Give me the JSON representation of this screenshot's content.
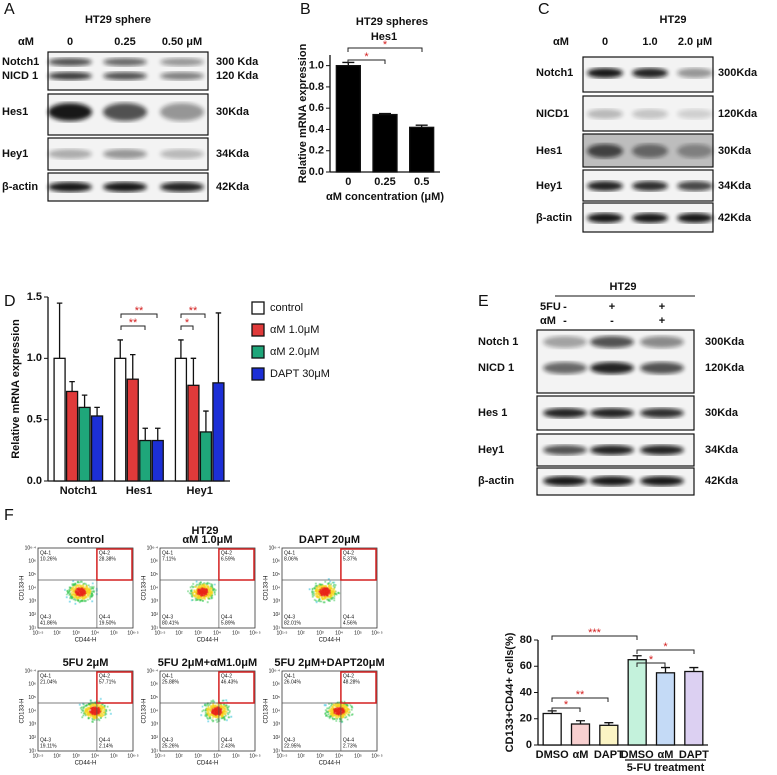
{
  "panels": {
    "A": {
      "label": "A",
      "title": "HT29 sphere",
      "dose_label": "αM",
      "doses": [
        "0",
        "0.25",
        "0.50 μM"
      ],
      "rows": [
        {
          "names": [
            "Notch1",
            "NICD 1"
          ],
          "sizes": [
            "300 Kda",
            "120 Kda"
          ]
        },
        {
          "names": [
            "Hes1"
          ],
          "sizes": [
            "30Kda"
          ]
        },
        {
          "names": [
            "Hey1"
          ],
          "sizes": [
            "34Kda"
          ]
        },
        {
          "names": [
            "β-actin"
          ],
          "sizes": [
            "42Kda"
          ]
        }
      ]
    },
    "C": {
      "label": "C",
      "title": "HT29",
      "dose_label": "αM",
      "doses": [
        "0",
        "1.0",
        "2.0  μM"
      ],
      "rows": [
        {
          "names": [
            "Notch1"
          ],
          "sizes": [
            "300Kda"
          ]
        },
        {
          "names": [
            "NICD1"
          ],
          "sizes": [
            "120Kda"
          ]
        },
        {
          "names": [
            "Hes1"
          ],
          "sizes": [
            "30Kda"
          ]
        },
        {
          "names": [
            "Hey1"
          ],
          "sizes": [
            "34Kda"
          ]
        },
        {
          "names": [
            "β-actin"
          ],
          "sizes": [
            "42Kda"
          ]
        }
      ]
    },
    "E": {
      "label": "E",
      "title": "HT29",
      "treatments": [
        {
          "name": "5FU",
          "marks": [
            "-",
            "+",
            "+"
          ]
        },
        {
          "name": "αM",
          "marks": [
            "-",
            "-",
            "+"
          ]
        }
      ],
      "rows": [
        {
          "names": [
            "Notch 1",
            "NICD 1"
          ],
          "sizes": [
            "300Kda",
            "120Kda"
          ]
        },
        {
          "names": [
            "Hes 1"
          ],
          "sizes": [
            "30Kda"
          ]
        },
        {
          "names": [
            "Hey1"
          ],
          "sizes": [
            "34Kda"
          ]
        },
        {
          "names": [
            "β-actin"
          ],
          "sizes": [
            "42Kda"
          ]
        }
      ]
    },
    "F": {
      "label": "F",
      "title": "HT29",
      "x_label": "CD44-H",
      "y_label": "CD133-H",
      "xticks": [
        "10¹·⁵",
        "10²",
        "10³",
        "10⁴",
        "10⁵",
        "10⁶·⁵"
      ],
      "yticks": [
        "10⁶·⁴",
        "10⁶",
        "10⁵",
        "10⁴",
        "10³",
        "10²",
        "10¹"
      ],
      "plots": [
        {
          "title": "control",
          "quadrants": [
            {
              "name": "Q4-1",
              "value": "10.26%"
            },
            {
              "name": "Q4-2",
              "value": "28.38%"
            },
            {
              "name": "Q4-3",
              "value": "41.86%"
            },
            {
              "name": "Q4-4",
              "value": "19.50%"
            }
          ]
        },
        {
          "title": "αM 1.0μM",
          "quadrants": [
            {
              "name": "Q4-1",
              "value": "7.11%"
            },
            {
              "name": "Q4-2",
              "value": "6.59%"
            },
            {
              "name": "Q4-3",
              "value": "80.41%"
            },
            {
              "name": "Q4-4",
              "value": "5.89%"
            }
          ]
        },
        {
          "title": "DAPT 20μM",
          "quadrants": [
            {
              "name": "Q4-1",
              "value": "8.06%"
            },
            {
              "name": "Q4-2",
              "value": "5.37%"
            },
            {
              "name": "Q4-3",
              "value": "82.01%"
            },
            {
              "name": "Q4-4",
              "value": "4.56%"
            }
          ]
        },
        {
          "title": "5FU 2μM",
          "quadrants": [
            {
              "name": "Q4-1",
              "value": "21.04%"
            },
            {
              "name": "Q4-2",
              "value": "57.71%"
            },
            {
              "name": "Q4-3",
              "value": "19.11%"
            },
            {
              "name": "Q4-4",
              "value": "2.14%"
            }
          ]
        },
        {
          "title": "5FU 2μM+αM1.0μM",
          "quadrants": [
            {
              "name": "Q4-1",
              "value": "25.88%"
            },
            {
              "name": "Q4-2",
              "value": "46.43%"
            },
            {
              "name": "Q4-3",
              "value": "25.26%"
            },
            {
              "name": "Q4-4",
              "value": "2.43%"
            }
          ]
        },
        {
          "title": "5FU 2μM+DAPT20μM",
          "quadrants": [
            {
              "name": "Q4-1",
              "value": "26.04%"
            },
            {
              "name": "Q4-2",
              "value": "48.28%"
            },
            {
              "name": "Q4-3",
              "value": "22.95%"
            },
            {
              "name": "Q4-4",
              "value": "2.73%"
            }
          ]
        }
      ]
    }
  },
  "chart_data": [
    {
      "type": "bar",
      "panel_label": "B",
      "title": "HT29 spheres",
      "subtitle": "Hes1",
      "y_label": "Relative mRNA expression",
      "x_label": "αM concentration (μM)",
      "categories": [
        "0",
        "0.25",
        "0.5"
      ],
      "values": [
        1.0,
        0.54,
        0.42
      ],
      "errors": [
        0.03,
        0.01,
        0.02
      ],
      "color": "#000000",
      "ylim": [
        0,
        1.1
      ],
      "yticks": [
        {
          "value": 0,
          "label": "0.0"
        },
        {
          "value": 0.2,
          "label": "0.2"
        },
        {
          "value": 0.4,
          "label": "0.4"
        },
        {
          "value": 0.6,
          "label": "0.6"
        },
        {
          "value": 0.8,
          "label": "0.8"
        },
        {
          "value": 1.0,
          "label": "1.0"
        }
      ],
      "annotations": [
        "*",
        "*"
      ]
    },
    {
      "type": "bar",
      "panel_label": "D",
      "y_label": "Relative mRNA expression",
      "categories": [
        "Notch1",
        "Hes1",
        "Hey1"
      ],
      "series": [
        {
          "name": "control",
          "color": "#ffffff",
          "values": [
            1.0,
            1.0,
            1.0
          ],
          "errors": [
            0.45,
            0.15,
            0.15
          ]
        },
        {
          "name": "αM  1.0μM",
          "color": "#e03a3a",
          "values": [
            0.73,
            0.83,
            0.78
          ],
          "errors": [
            0.08,
            0.2,
            0.22
          ]
        },
        {
          "name": "αM  2.0μM",
          "color": "#1fa67a",
          "values": [
            0.6,
            0.33,
            0.4
          ],
          "errors": [
            0.1,
            0.1,
            0.17
          ]
        },
        {
          "name": "DAPT 30μM",
          "color": "#1c2fd6",
          "values": [
            0.53,
            0.33,
            0.8
          ],
          "errors": [
            0.07,
            0.1,
            0.57
          ]
        }
      ],
      "ylim": [
        0,
        1.5
      ],
      "yticks": [
        {
          "value": 0,
          "label": "0.0"
        },
        {
          "value": 0.5,
          "label": "0.5"
        },
        {
          "value": 1.0,
          "label": "1.0"
        },
        {
          "value": 1.5,
          "label": "1.5"
        }
      ],
      "annotations": [
        "**",
        "**",
        "**",
        "*"
      ]
    },
    {
      "type": "bar",
      "y_label": "CD133+CD44+ cells(%)",
      "group_label": "5-FU treatment",
      "categories": [
        "DMSO",
        "αM",
        "DAPT",
        "DMSO",
        "αM",
        "DAPT"
      ],
      "values": [
        24,
        16,
        15,
        65,
        55,
        56
      ],
      "errors": [
        2,
        2.5,
        2,
        3,
        4,
        3
      ],
      "colors": [
        "#ffffff",
        "#f8d0d0",
        "#fbf4c4",
        "#c4f2dc",
        "#c4daf6",
        "#dcd0f2"
      ],
      "ylim": [
        0,
        80
      ],
      "yticks": [
        0,
        20,
        40,
        60,
        80
      ],
      "annotations": [
        "***",
        "*",
        "*",
        "**",
        "*"
      ]
    }
  ]
}
